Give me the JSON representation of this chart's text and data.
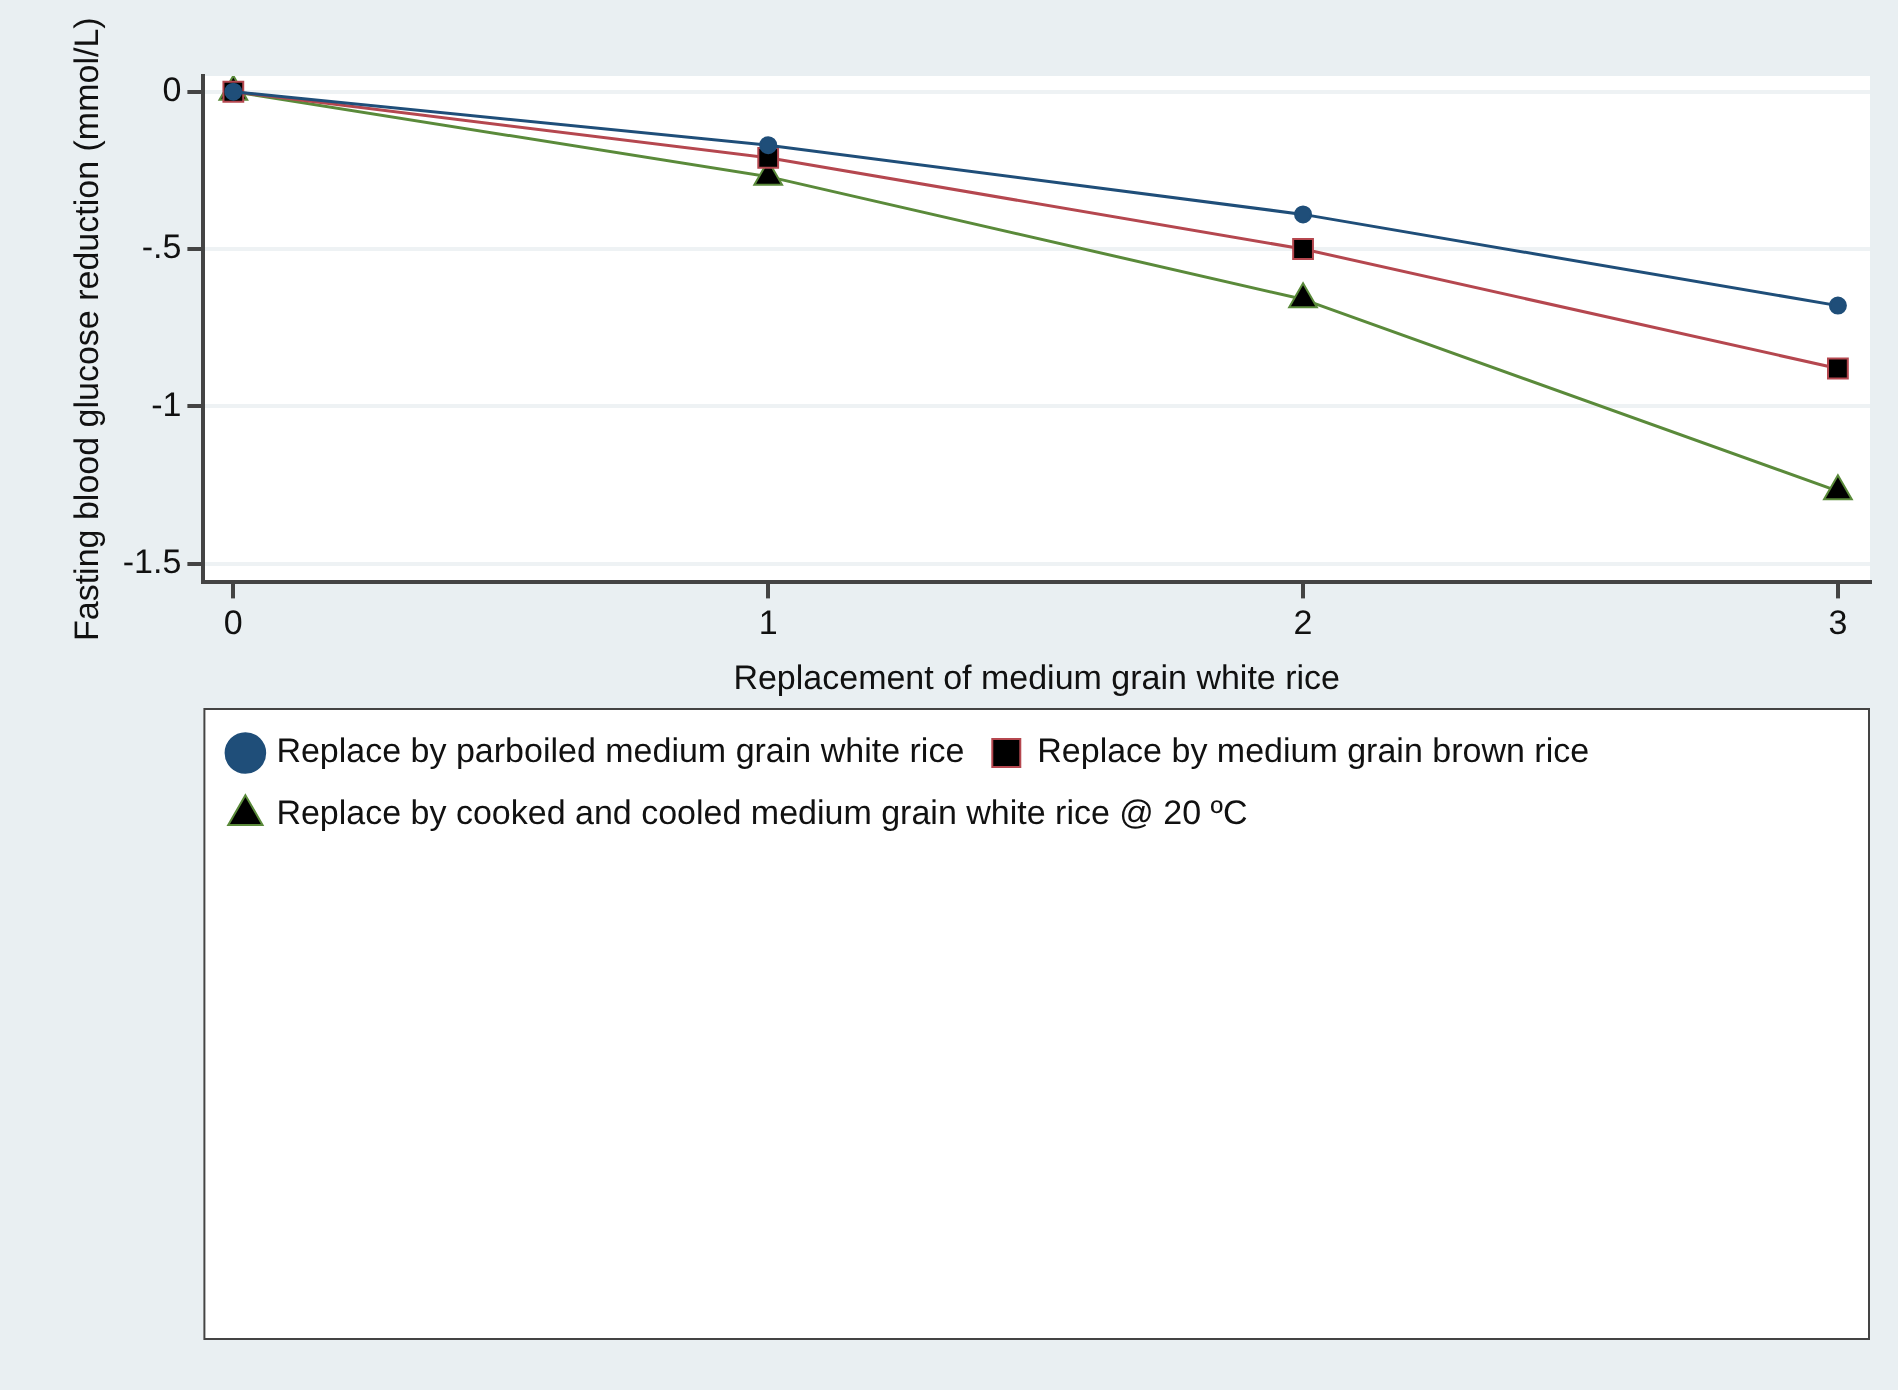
{
  "chart_data": {
    "type": "line",
    "xlabel": "Replacement of medium grain white rice",
    "ylabel": "Fasting blood glucose reduction (mmol/L)",
    "x": [
      0,
      1,
      2,
      3
    ],
    "xlim": [
      -0.056,
      3.06
    ],
    "xticks": [
      0,
      1,
      2,
      3
    ],
    "ylim": [
      -1.56,
      0.05
    ],
    "yticks": [
      {
        "value": -1.5,
        "label": "-1.5"
      },
      {
        "value": -1,
        "label": "-1"
      },
      {
        "value": -0.5,
        "label": "-.5"
      },
      {
        "value": 0,
        "label": "0"
      }
    ],
    "grid": "y",
    "legend": "bottom",
    "series": [
      {
        "name": "Replace by parboiled medium grain white rice",
        "color": "#1f4e79",
        "marker": "circle",
        "values": [
          0,
          -0.17,
          -0.39,
          -0.68
        ]
      },
      {
        "name": "Replace by medium grain brown rice",
        "color": "#b5474f",
        "marker": "square",
        "values": [
          0,
          -0.21,
          -0.5,
          -0.88
        ]
      },
      {
        "name": "Replace by cooked and cooled medium grain white rice @ 20 ºC",
        "color": "#5a8a3a",
        "marker": "triangle",
        "values": [
          0,
          -0.27,
          -0.66,
          -1.27
        ]
      }
    ]
  }
}
